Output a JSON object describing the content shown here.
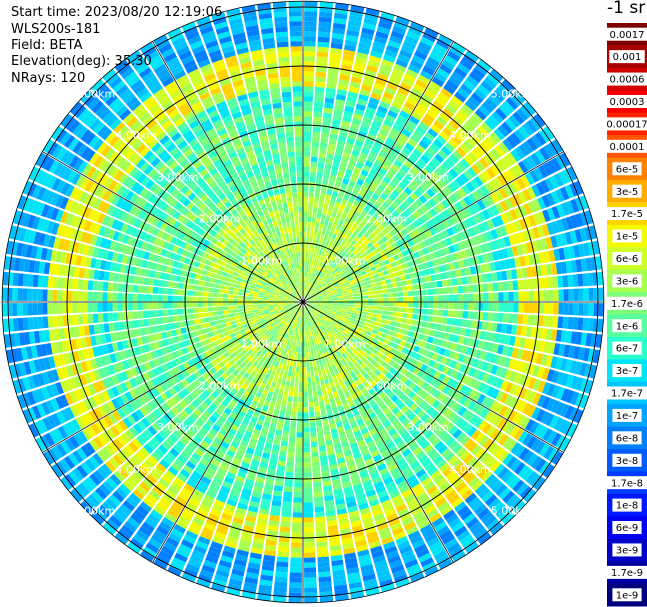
{
  "info": {
    "start_time": "Start time: 2023/08/20 12:19:06",
    "instrument": "WLS200s-181",
    "field": "Field: BETA",
    "elevation": "Elevation(deg): 35.30",
    "nrays": "NRays: 120"
  },
  "colorbar": {
    "unit": "-1 sr",
    "labels": [
      "0.0017",
      "0.001",
      "0.0006",
      "0.0003",
      "0.00017",
      "0.0001",
      "6e-5",
      "3e-5",
      "1.7e-5",
      "1e-5",
      "6e-6",
      "3e-6",
      "1.7e-6",
      "1e-6",
      "6e-7",
      "3e-7",
      "1.7e-7",
      "1e-7",
      "6e-8",
      "3e-8",
      "1.7e-8",
      "1e-8",
      "6e-9",
      "3e-9",
      "1.7e-9",
      "1e-9"
    ],
    "colors": [
      "#7f0000",
      "#a80000",
      "#d00000",
      "#f40000",
      "#ff2500",
      "#ff5300",
      "#ff8100",
      "#ffab00",
      "#ffd200",
      "#f5fa00",
      "#cfff28",
      "#a7ff50",
      "#7eff79",
      "#57ffa0",
      "#2affcd",
      "#00e4f8",
      "#00c4ff",
      "#00a4ff",
      "#0080ff",
      "#005cff",
      "#003cff",
      "#0018ff",
      "#0000f1",
      "#0000c8",
      "#0000a0",
      "#00007f"
    ]
  },
  "chart_data": {
    "type": "heatmap",
    "projection": "polar PPI scan",
    "field": "BETA",
    "nrays": 120,
    "elevation_deg": 35.3,
    "range_rings_km": [
      1,
      2,
      3,
      4,
      5
    ],
    "range_labels": [
      "1.00km",
      "2.00km",
      "3.00km",
      "4.00km",
      "5.00km"
    ],
    "max_range_km": 5.1,
    "spokes_deg": [
      0,
      30,
      60,
      90,
      120,
      150,
      180,
      210,
      240,
      270,
      300,
      330
    ],
    "aerosol_ring_range_km": [
      3.9,
      4.2
    ],
    "aerosol_ring_beta": "3e-6 to 1.7e-5",
    "inner_beta": "1.7e-7 to 1e-6",
    "outer_beta": "1e-8 to 1.7e-7"
  }
}
